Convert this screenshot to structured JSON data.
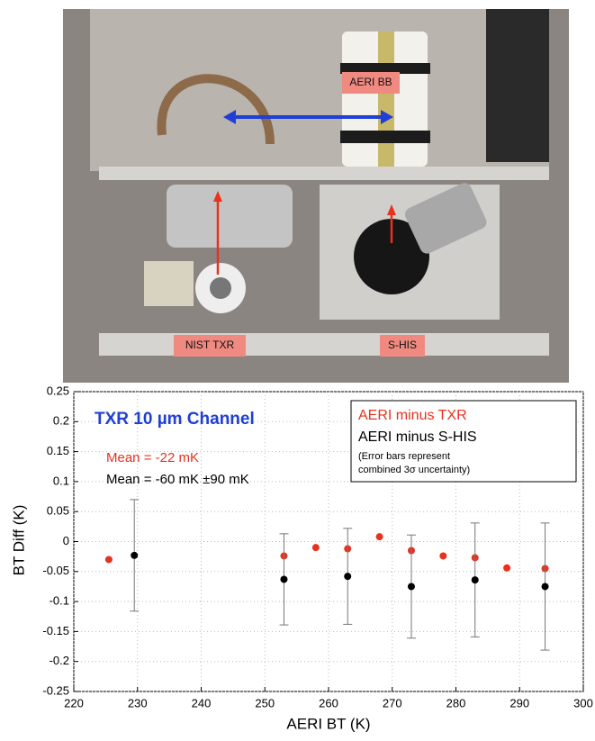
{
  "photo_labels": [
    "AERI BB",
    "NIST TXR",
    "S-HIS"
  ],
  "chart_data": {
    "type": "scatter",
    "title": "TXR 10 µm Channel",
    "annotations": [
      "Mean = -22 mK",
      "Mean = -60 mK ±90 mK"
    ],
    "legend_note": [
      "(Error bars represent",
      "combined 3σ uncertainty)"
    ],
    "x_label": "AERI BT (K)",
    "y_label": "BT Diff (K)",
    "xlim": [
      220,
      300
    ],
    "xticks": [
      220,
      230,
      240,
      250,
      260,
      270,
      280,
      290,
      300
    ],
    "ylim": [
      -0.25,
      0.25
    ],
    "yticks": [
      0.25,
      0.2,
      0.15,
      0.1,
      0.05,
      0,
      -0.05,
      -0.1,
      -0.15,
      -0.2,
      -0.25
    ],
    "grid": true,
    "series": [
      {
        "name": "AERI minus TXR",
        "color": "#e8321e",
        "x": [
          225.5,
          253,
          258,
          263,
          268,
          273,
          278,
          283,
          288,
          294
        ],
        "values": [
          -0.03,
          -0.024,
          -0.01,
          -0.012,
          0.008,
          -0.015,
          -0.024,
          -0.027,
          -0.044,
          -0.045
        ]
      },
      {
        "name": "AERI minus S-HIS",
        "color": "#000000",
        "x": [
          229.5,
          253,
          263,
          273,
          283,
          294
        ],
        "values": [
          -0.023,
          -0.063,
          -0.058,
          -0.075,
          -0.064,
          -0.075
        ],
        "errors": [
          0.093,
          0.076,
          0.08,
          0.086,
          0.095,
          0.106
        ]
      }
    ]
  }
}
